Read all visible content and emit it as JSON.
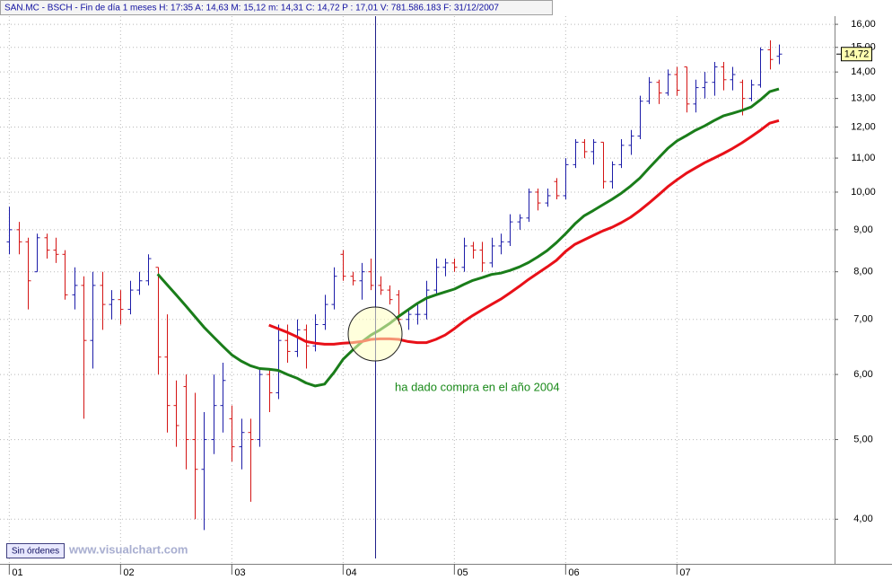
{
  "chart_data": {
    "type": "ohlc",
    "title": "SAN.MC - BSCH - Fin de día 1 meses  H: 17:35  A: 14,63  M: 15,12  m: 14,31  C: 14,72  P : 17,01  V: 781.586.183  F: 31/12/2007",
    "annotation": "ha dado compra en el año 2004",
    "button": "Sin órdenes",
    "watermark": "www.visualchart.com",
    "log_scale": true,
    "grid": true,
    "up_color": "#1c1ca8",
    "down_color": "#d41414",
    "xlim": [
      -1,
      89
    ],
    "xticks": [
      {
        "value": 0,
        "label": "01"
      },
      {
        "value": 12,
        "label": "02"
      },
      {
        "value": 24,
        "label": "03"
      },
      {
        "value": 36,
        "label": "04"
      },
      {
        "value": 48,
        "label": "05"
      },
      {
        "value": 60,
        "label": "06"
      },
      {
        "value": 72,
        "label": "07"
      }
    ],
    "ylim": [
      3.53,
      16.37
    ],
    "yticks": [
      {
        "value": 4,
        "label": "4,00"
      },
      {
        "value": 5,
        "label": "5,00"
      },
      {
        "value": 6,
        "label": "6,00"
      },
      {
        "value": 7,
        "label": "7,00"
      },
      {
        "value": 8,
        "label": "8,00"
      },
      {
        "value": 9,
        "label": "9,00"
      },
      {
        "value": 10,
        "label": "10,00"
      },
      {
        "value": 11,
        "label": "11,00"
      },
      {
        "value": 12,
        "label": "12,00"
      },
      {
        "value": 13,
        "label": "13,00"
      },
      {
        "value": 14,
        "label": "14,00"
      },
      {
        "value": 15,
        "label": "15,00"
      },
      {
        "value": 16,
        "label": "16,00"
      }
    ],
    "last_value": 14.72,
    "last_value_label": "14,72",
    "ohlc": {
      "open": [
        8.7,
        9.0,
        8.7,
        8.0,
        8.8,
        8.5,
        8.4,
        7.5,
        7.7,
        6.6,
        7.7,
        7.3,
        7.4,
        7.2,
        7.6,
        7.8,
        8.1,
        6.3,
        5.5,
        5.8,
        5.0,
        4.6,
        5.0,
        5.5,
        5.3,
        4.9,
        5.1,
        5.0,
        6.0,
        5.7,
        6.6,
        6.4,
        6.8,
        6.5,
        6.9,
        7.3,
        8.4,
        7.9,
        7.8,
        8.0,
        7.7,
        7.6,
        7.5,
        7.0,
        7.1,
        7.1,
        7.6,
        8.1,
        8.2,
        8.1,
        8.6,
        8.5,
        8.2,
        8.6,
        8.7,
        9.2,
        9.3,
        10.0,
        9.7,
        10.3,
        9.9,
        10.8,
        11.5,
        11.2,
        11.5,
        10.3,
        10.8,
        11.4,
        11.7,
        12.9,
        13.6,
        13.2,
        13.9,
        14.2,
        12.8,
        13.4,
        13.6,
        14.2,
        13.7,
        13.6,
        13.0,
        13.5,
        14.9,
        14.63
      ],
      "high": [
        9.6,
        9.2,
        8.8,
        8.9,
        8.9,
        8.8,
        8.5,
        8.1,
        7.9,
        8.0,
        8.0,
        7.6,
        7.6,
        7.8,
        8.0,
        8.4,
        8.1,
        7.1,
        5.9,
        6.0,
        5.7,
        5.4,
        6.0,
        6.2,
        5.5,
        5.3,
        5.3,
        6.1,
        6.1,
        6.9,
        6.9,
        7.0,
        6.9,
        7.1,
        7.5,
        8.1,
        8.5,
        8.0,
        8.2,
        8.3,
        7.9,
        7.7,
        7.6,
        7.2,
        7.3,
        7.8,
        8.3,
        8.3,
        8.3,
        8.8,
        8.7,
        8.7,
        8.8,
        8.9,
        9.4,
        9.4,
        10.1,
        10.1,
        10.1,
        10.4,
        11.0,
        11.6,
        11.6,
        11.6,
        11.5,
        10.9,
        11.6,
        11.9,
        13.1,
        13.8,
        13.7,
        14.1,
        14.2,
        14.2,
        13.7,
        14.0,
        14.4,
        14.4,
        14.2,
        13.7,
        13.7,
        15.0,
        15.3,
        15.12
      ],
      "low": [
        8.4,
        8.4,
        7.2,
        8.0,
        8.3,
        8.2,
        7.4,
        7.2,
        5.3,
        6.1,
        6.8,
        7.0,
        6.9,
        7.1,
        7.5,
        7.7,
        6.0,
        5.1,
        4.9,
        4.6,
        4.0,
        3.88,
        4.8,
        5.1,
        4.7,
        4.6,
        4.2,
        4.9,
        5.4,
        5.6,
        6.2,
        6.3,
        6.1,
        6.4,
        6.8,
        7.2,
        7.8,
        7.7,
        7.4,
        7.6,
        7.5,
        7.3,
        6.9,
        6.8,
        6.9,
        7.0,
        7.5,
        7.9,
        8.0,
        8.0,
        8.3,
        8.0,
        8.1,
        8.4,
        8.6,
        9.0,
        9.2,
        9.5,
        9.6,
        9.8,
        9.8,
        10.7,
        11.0,
        10.8,
        10.1,
        10.1,
        10.7,
        11.1,
        11.6,
        12.8,
        12.8,
        13.1,
        13.1,
        12.5,
        12.5,
        13.0,
        13.1,
        13.3,
        13.3,
        12.4,
        12.9,
        13.4,
        14.1,
        14.31
      ],
      "close": [
        9.0,
        8.7,
        7.8,
        8.8,
        8.5,
        8.4,
        7.5,
        7.7,
        6.6,
        7.7,
        7.3,
        7.4,
        7.2,
        7.6,
        7.8,
        8.3,
        6.3,
        5.5,
        5.2,
        5.0,
        4.6,
        5.0,
        5.5,
        5.9,
        4.9,
        5.1,
        5.0,
        6.0,
        5.7,
        6.6,
        6.4,
        6.8,
        6.5,
        6.9,
        7.3,
        7.9,
        7.9,
        7.8,
        8.0,
        7.7,
        7.6,
        7.4,
        7.0,
        7.1,
        7.1,
        7.6,
        8.1,
        8.2,
        8.1,
        8.6,
        8.5,
        8.2,
        8.6,
        8.7,
        9.2,
        9.3,
        10.0,
        9.7,
        9.9,
        9.9,
        10.8,
        11.5,
        11.2,
        11.5,
        10.3,
        10.8,
        11.4,
        11.7,
        12.9,
        13.6,
        13.2,
        13.9,
        13.3,
        12.8,
        13.4,
        13.6,
        14.2,
        13.7,
        13.9,
        13.0,
        13.5,
        14.9,
        14.5,
        14.72
      ]
    },
    "moving_averages": [
      {
        "color": "#1a7d1a",
        "values": [
          null,
          null,
          null,
          null,
          null,
          null,
          null,
          null,
          null,
          null,
          null,
          null,
          null,
          null,
          null,
          null,
          7.95,
          7.72,
          7.5,
          7.28,
          7.06,
          6.85,
          6.67,
          6.5,
          6.34,
          6.23,
          6.15,
          6.1,
          6.09,
          6.07,
          6.0,
          5.94,
          5.86,
          5.81,
          5.84,
          6.03,
          6.26,
          6.42,
          6.57,
          6.7,
          6.8,
          6.92,
          7.06,
          7.19,
          7.32,
          7.43,
          7.5,
          7.56,
          7.62,
          7.72,
          7.81,
          7.87,
          7.94,
          7.97,
          8.03,
          8.11,
          8.21,
          8.34,
          8.49,
          8.68,
          8.9,
          9.15,
          9.36,
          9.5,
          9.65,
          9.8,
          9.97,
          10.17,
          10.4,
          10.7,
          11.0,
          11.3,
          11.54,
          11.71,
          11.89,
          12.04,
          12.22,
          12.38,
          12.47,
          12.57,
          12.69,
          12.95,
          13.25,
          13.35
        ]
      },
      {
        "color": "#e81018",
        "values": [
          null,
          null,
          null,
          null,
          null,
          null,
          null,
          null,
          null,
          null,
          null,
          null,
          null,
          null,
          null,
          null,
          null,
          null,
          null,
          null,
          null,
          null,
          null,
          null,
          null,
          null,
          null,
          null,
          6.89,
          6.82,
          6.75,
          6.67,
          6.58,
          6.55,
          6.53,
          6.53,
          6.55,
          6.56,
          6.58,
          6.62,
          6.63,
          6.63,
          6.62,
          6.58,
          6.56,
          6.56,
          6.62,
          6.7,
          6.82,
          6.96,
          7.08,
          7.19,
          7.3,
          7.41,
          7.54,
          7.68,
          7.83,
          7.97,
          8.11,
          8.26,
          8.47,
          8.64,
          8.75,
          8.86,
          8.97,
          9.06,
          9.18,
          9.32,
          9.5,
          9.7,
          9.92,
          10.15,
          10.35,
          10.54,
          10.7,
          10.86,
          11.0,
          11.14,
          11.3,
          11.48,
          11.68,
          11.89,
          12.13,
          12.22
        ]
      }
    ]
  }
}
